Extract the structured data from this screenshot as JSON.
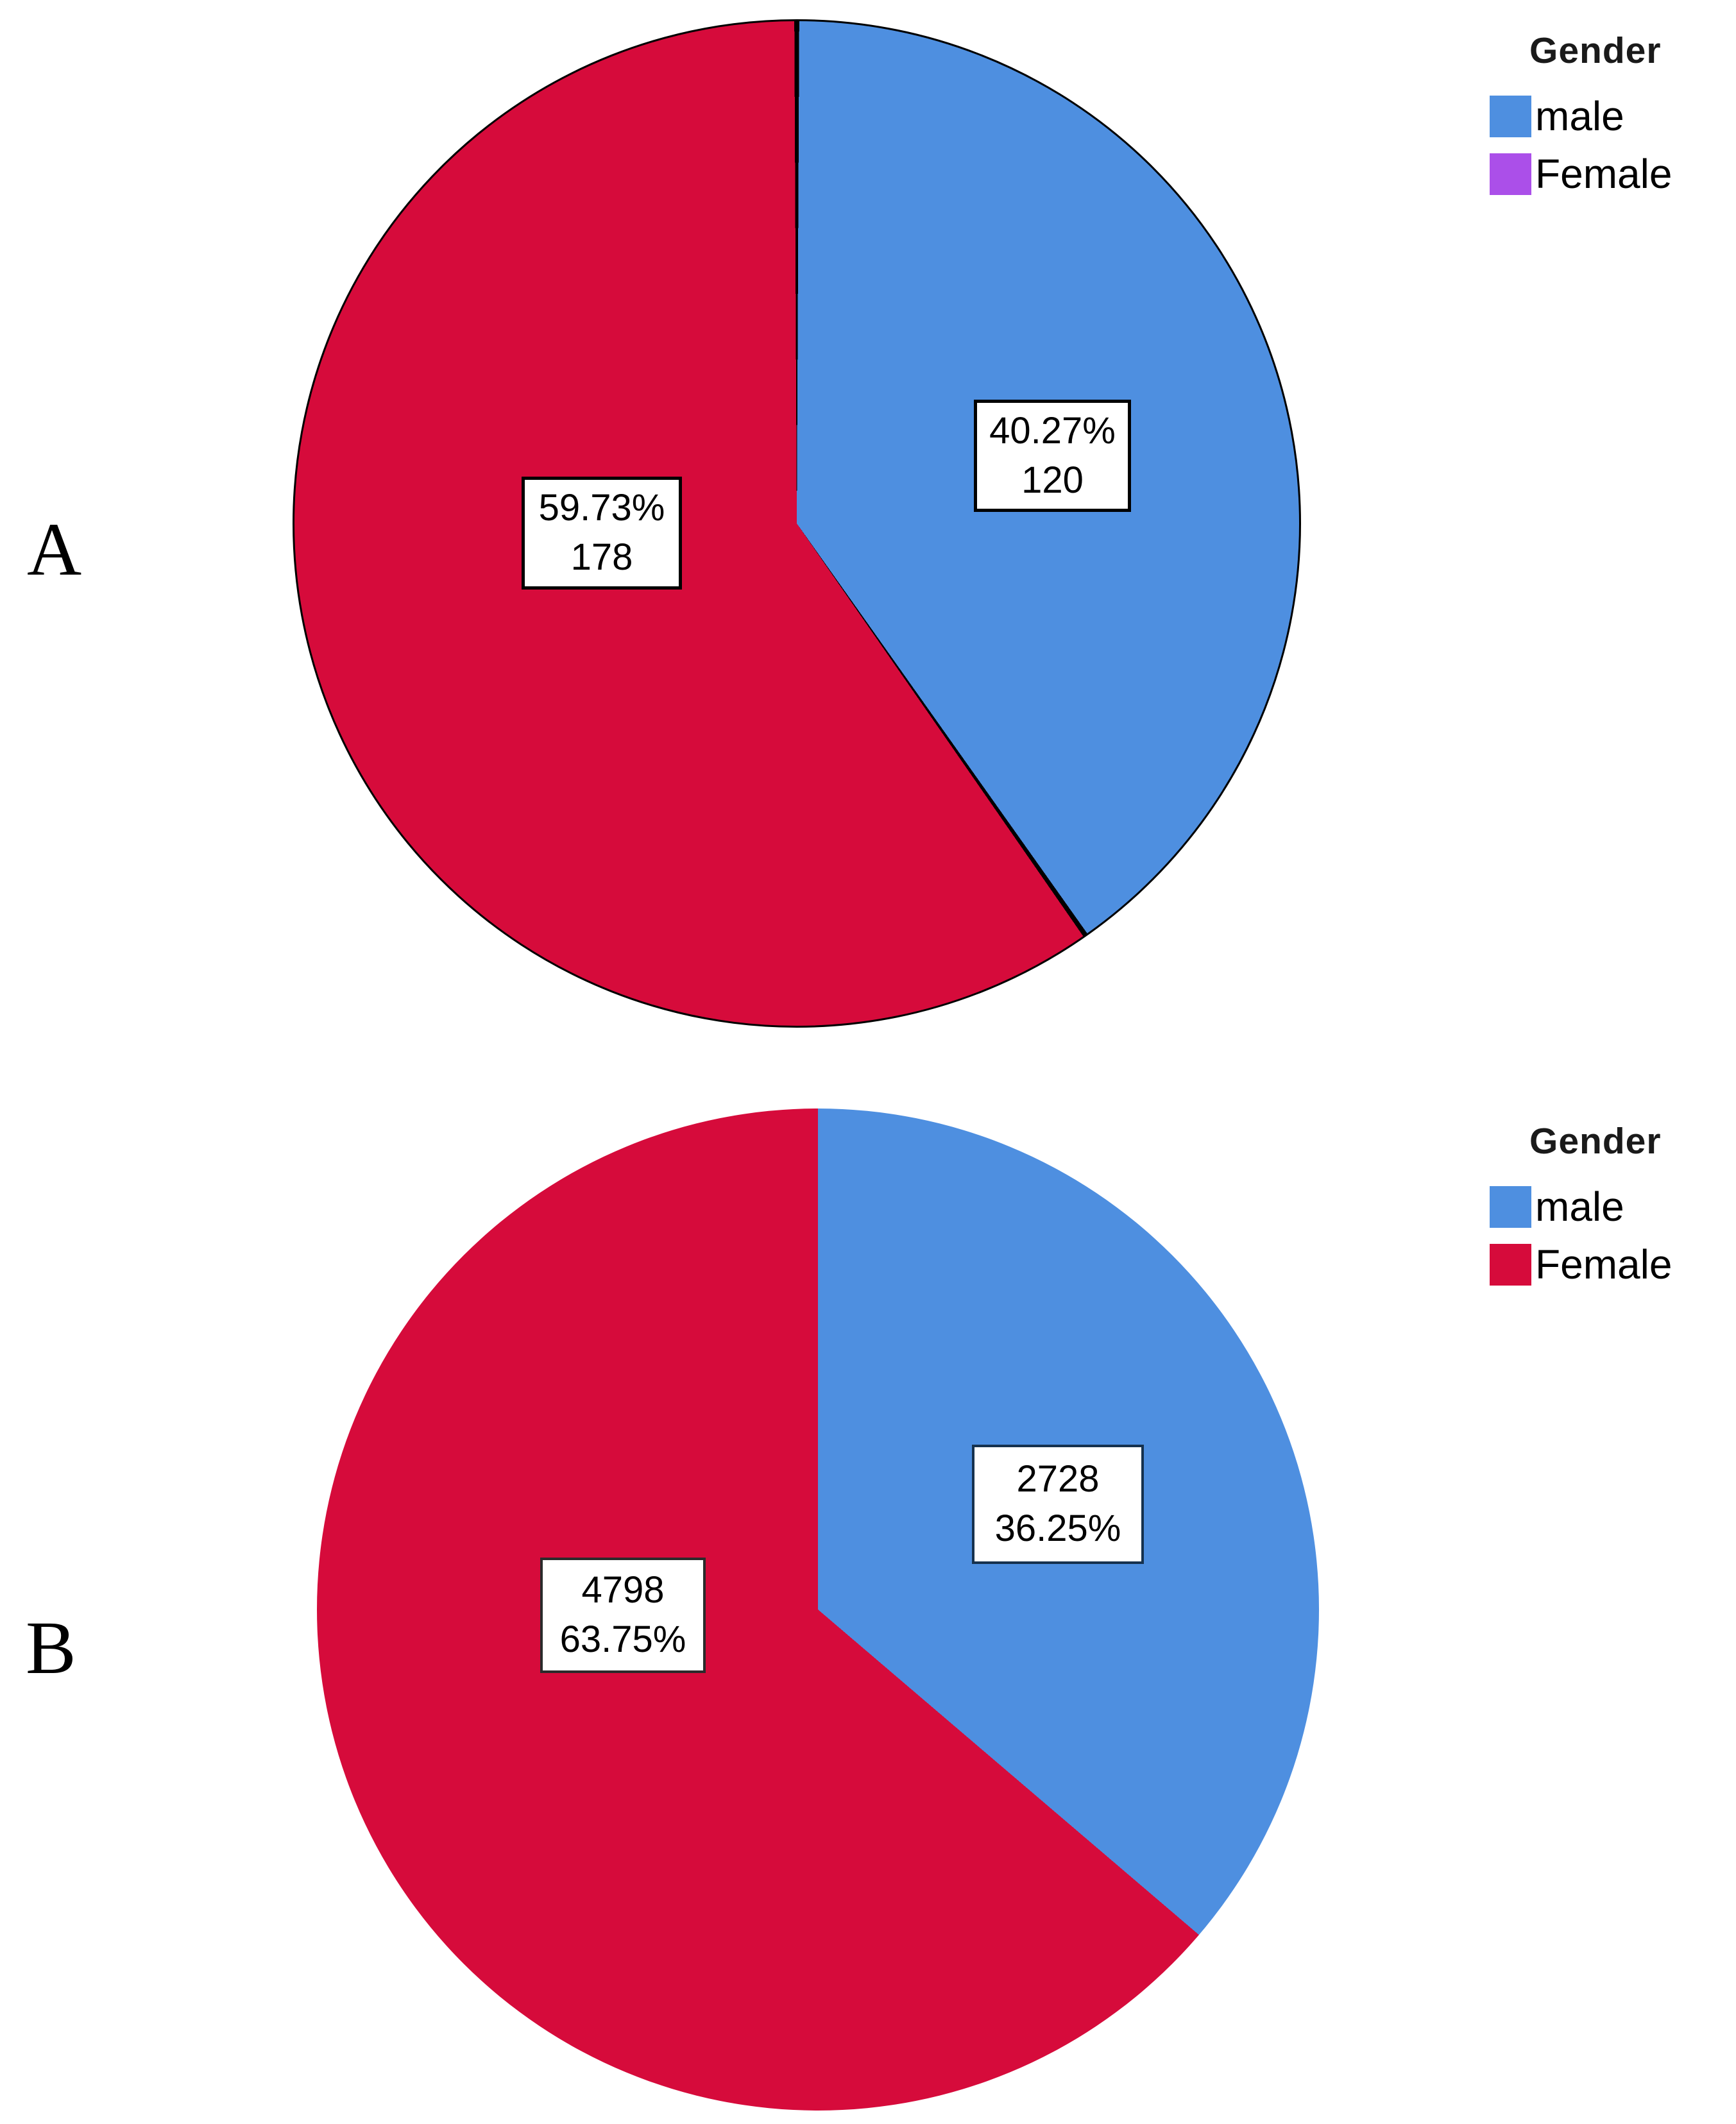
{
  "figure": {
    "panel_a_label": "A",
    "panel_b_label": "B"
  },
  "chart_data": [
    {
      "type": "pie",
      "panel": "A",
      "legend_title": "Gender",
      "legend_position": "top-right",
      "start_angle_deg": 0,
      "direction": "clockwise",
      "outline": true,
      "outline_color": "#000000",
      "slices": [
        {
          "name": "male",
          "value": 120,
          "percent": 40.27,
          "color": "#4E8FE0",
          "legend_color": "#4E8FE0",
          "label_lines": [
            "40.27%",
            "120"
          ]
        },
        {
          "name": "Female",
          "value": 178,
          "percent": 59.73,
          "color": "#D60B3B",
          "legend_color": "#AB4FE9",
          "label_lines": [
            "59.73%",
            "178"
          ]
        }
      ]
    },
    {
      "type": "pie",
      "panel": "B",
      "legend_title": "Gender",
      "legend_position": "top-right",
      "start_angle_deg": 0,
      "direction": "clockwise",
      "outline": false,
      "slices": [
        {
          "name": "male",
          "value": 2728,
          "percent": 36.25,
          "color": "#4E8FE0",
          "legend_color": "#4E8FE0",
          "label_lines": [
            "2728",
            "36.25%"
          ]
        },
        {
          "name": "Female",
          "value": 4798,
          "percent": 63.75,
          "color": "#D60B3B",
          "legend_color": "#D60B3B",
          "label_lines": [
            "4798",
            "63.75%"
          ]
        }
      ]
    }
  ]
}
